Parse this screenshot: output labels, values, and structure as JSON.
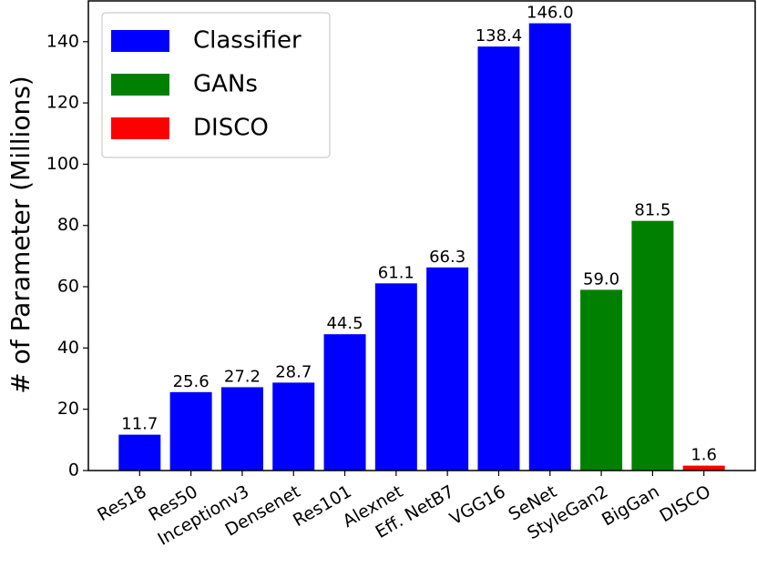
{
  "chart_data": {
    "type": "bar",
    "ylabel": "# of Parameter (Millions)",
    "categories": [
      "Res18",
      "Res50",
      "Inceptionv3",
      "Densenet",
      "Res101",
      "Alexnet",
      "Eff. NetB7",
      "VGG16",
      "SeNet",
      "StyleGan2",
      "BigGan",
      "DISCO"
    ],
    "series": [
      {
        "name": "Classifier",
        "color": "#0000ff",
        "values": [
          11.7,
          25.6,
          27.2,
          28.7,
          44.5,
          61.1,
          66.3,
          138.4,
          146,
          null,
          null,
          null
        ],
        "value_labels": [
          "11.7",
          "25.6",
          "27.2",
          "28.7",
          "44.5",
          "61.1",
          "66.3",
          "138.4",
          "146.0",
          null,
          null,
          null
        ]
      },
      {
        "name": "GANs",
        "color": "#008000",
        "values": [
          null,
          null,
          null,
          null,
          null,
          null,
          null,
          null,
          null,
          59,
          81.5,
          null
        ],
        "value_labels": [
          null,
          null,
          null,
          null,
          null,
          null,
          null,
          null,
          null,
          "59.0",
          "81.5",
          null
        ]
      },
      {
        "name": "DISCO",
        "color": "#ff0000",
        "values": [
          null,
          null,
          null,
          null,
          null,
          null,
          null,
          null,
          null,
          null,
          null,
          1.6
        ],
        "value_labels": [
          null,
          null,
          null,
          null,
          null,
          null,
          null,
          null,
          null,
          null,
          null,
          "1.6"
        ]
      }
    ],
    "ylim": [
      0,
      153.3
    ],
    "yticks": [
      0,
      20,
      40,
      60,
      80,
      100,
      120,
      140
    ],
    "grid": false,
    "legend": "upper-left"
  }
}
